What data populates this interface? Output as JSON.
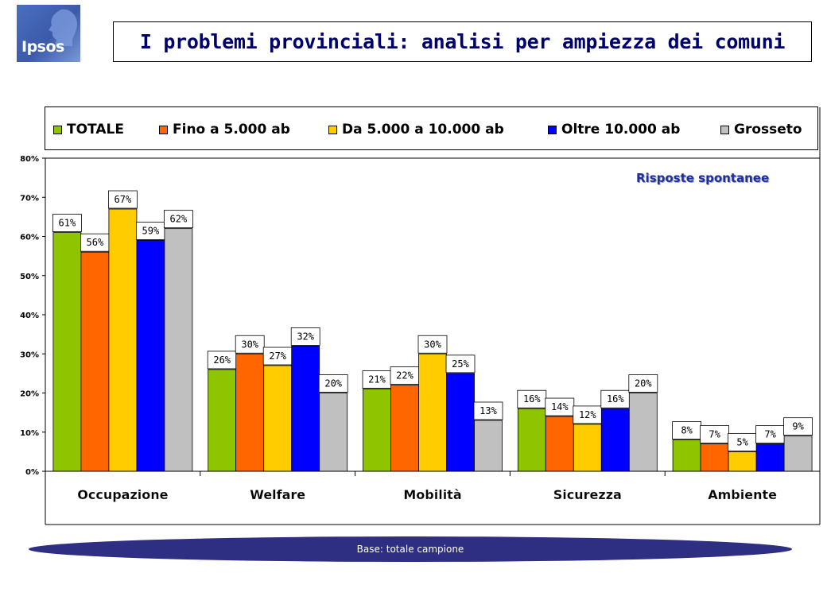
{
  "logo": {
    "text": "Ipsos"
  },
  "header": {
    "title": "I problemi provinciali: analisi per ampiezza dei comuni"
  },
  "note": "Risposte spontanee",
  "footer": {
    "base": "Base: totale campione"
  },
  "colors": {
    "TOTALE": "#8fc400",
    "Fino a 5.000 ab": "#ff6600",
    "Da 5.000 a 10.000 ab": "#ffcc00",
    "Oltre 10.000 ab": "#0000ff",
    "Grosseto": "#c0c0c0"
  },
  "chart_data": {
    "type": "bar",
    "title": "I problemi provinciali: analisi per ampiezza dei comuni",
    "categories": [
      "Occupazione",
      "Welfare",
      "Mobilità",
      "Sicurezza",
      "Ambiente"
    ],
    "series": [
      {
        "name": "TOTALE",
        "values": [
          61,
          26,
          21,
          16,
          8
        ]
      },
      {
        "name": "Fino a 5.000 ab",
        "values": [
          56,
          30,
          22,
          14,
          7
        ]
      },
      {
        "name": "Da 5.000 a 10.000 ab",
        "values": [
          67,
          27,
          30,
          12,
          5
        ]
      },
      {
        "name": "Oltre 10.000 ab",
        "values": [
          59,
          32,
          25,
          16,
          7
        ]
      },
      {
        "name": "Grosseto",
        "values": [
          62,
          20,
          13,
          20,
          9
        ]
      }
    ],
    "yticks": [
      "0%",
      "10%",
      "20%",
      "30%",
      "40%",
      "50%",
      "60%",
      "70%",
      "80%"
    ],
    "ylim": [
      0,
      80
    ],
    "unit": "%",
    "legend_position": "top",
    "grid": false
  }
}
